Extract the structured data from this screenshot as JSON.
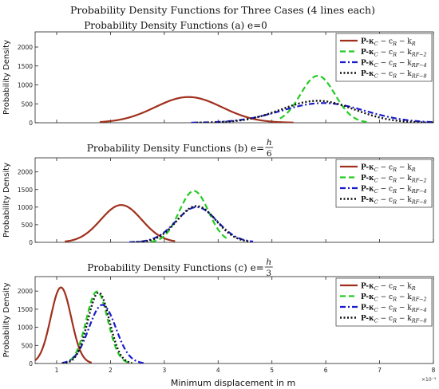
{
  "figure": {
    "title": "Probability Density Functions for Three Cases (4 lines each)",
    "xlabel": "Minimum displacement in m",
    "x_exponent": "×10⁻³"
  },
  "legend_entries": [
    {
      "main": "P-κ",
      "sub1": "C",
      "mid": " − c",
      "sub2": "R",
      "end": " − k",
      "sub3": "R"
    },
    {
      "main": "P-κ",
      "sub1": "C",
      "mid": " − c",
      "sub2": "R",
      "end": " − k",
      "sub3": "RF−2"
    },
    {
      "main": "P-κ",
      "sub1": "C",
      "mid": " − c",
      "sub2": "R",
      "end": " − k",
      "sub3": "RF−4"
    },
    {
      "main": "P-κ",
      "sub1": "C",
      "mid": " − c",
      "sub2": "R",
      "end": " − k",
      "sub3": "RF−8"
    }
  ],
  "series_styles": [
    {
      "color": "#a0301c",
      "dash": "",
      "width": 2.2
    },
    {
      "color": "#22cc22",
      "dash": "7,4",
      "width": 2.2
    },
    {
      "color": "#1a1acc",
      "dash": "7,3,2,3",
      "width": 2.2
    },
    {
      "color": "#111111",
      "dash": "2,2.5",
      "width": 2.4
    }
  ],
  "chart_data": [
    {
      "type": "line",
      "title": "Probability Density Functions (a) e=0",
      "ylabel": "Probability Density",
      "xlim": [
        0.6,
        8.0
      ],
      "ylim": [
        0,
        2400
      ],
      "xticks": [
        1,
        2,
        3,
        4,
        5,
        6,
        7,
        8
      ],
      "yticks": [
        0,
        500,
        1000,
        1500,
        2000
      ],
      "grid": false,
      "legend": "top-right",
      "series": [
        {
          "peak_x": 3.45,
          "peak_y": 680,
          "sigma": 0.62,
          "x_range": [
            1.8,
            5.4
          ]
        },
        {
          "peak_x": 5.85,
          "peak_y": 1240,
          "sigma": 0.32,
          "x_range": [
            5.15,
            6.8
          ]
        },
        {
          "peak_x": 5.95,
          "peak_y": 520,
          "sigma": 0.78,
          "x_range": [
            3.5,
            8.0
          ]
        },
        {
          "peak_x": 5.85,
          "peak_y": 580,
          "sigma": 0.68,
          "x_range": [
            3.6,
            8.0
          ]
        }
      ]
    },
    {
      "type": "line",
      "title": "Probability Density Functions (b) e=",
      "title_frac": {
        "num": "h",
        "den": "6"
      },
      "ylabel": "Probability Density",
      "xlim": [
        0.6,
        8.0
      ],
      "ylim": [
        0,
        2400
      ],
      "xticks": [
        1,
        2,
        3,
        4,
        5,
        6,
        7,
        8
      ],
      "yticks": [
        0,
        500,
        1000,
        1500,
        2000
      ],
      "grid": false,
      "legend": "top-right",
      "series": [
        {
          "peak_x": 2.2,
          "peak_y": 1060,
          "sigma": 0.38,
          "x_range": [
            1.15,
            3.2
          ]
        },
        {
          "peak_x": 3.55,
          "peak_y": 1460,
          "sigma": 0.27,
          "x_range": [
            2.75,
            4.2
          ]
        },
        {
          "peak_x": 3.6,
          "peak_y": 1000,
          "sigma": 0.38,
          "x_range": [
            2.35,
            4.65
          ]
        },
        {
          "peak_x": 3.6,
          "peak_y": 1030,
          "sigma": 0.36,
          "x_range": [
            2.4,
            4.6
          ]
        }
      ]
    },
    {
      "type": "line",
      "title": "Probability Density Functions (c) e=",
      "title_frac": {
        "num": "h",
        "den": "3"
      },
      "ylabel": "Probability Density",
      "xlim": [
        0.6,
        8.0
      ],
      "ylim": [
        0,
        2400
      ],
      "xticks": [
        1,
        2,
        3,
        4,
        5,
        6,
        7,
        8
      ],
      "yticks": [
        0,
        500,
        1000,
        1500,
        2000
      ],
      "grid": false,
      "legend": "top-right",
      "series": [
        {
          "peak_x": 1.08,
          "peak_y": 2100,
          "sigma": 0.19,
          "x_range": [
            0.6,
            1.65
          ]
        },
        {
          "peak_x": 1.75,
          "peak_y": 1990,
          "sigma": 0.2,
          "x_range": [
            1.1,
            2.4
          ]
        },
        {
          "peak_x": 1.85,
          "peak_y": 1620,
          "sigma": 0.25,
          "x_range": [
            1.1,
            2.65
          ]
        },
        {
          "peak_x": 1.78,
          "peak_y": 1960,
          "sigma": 0.2,
          "x_range": [
            1.1,
            2.4
          ]
        }
      ]
    }
  ]
}
